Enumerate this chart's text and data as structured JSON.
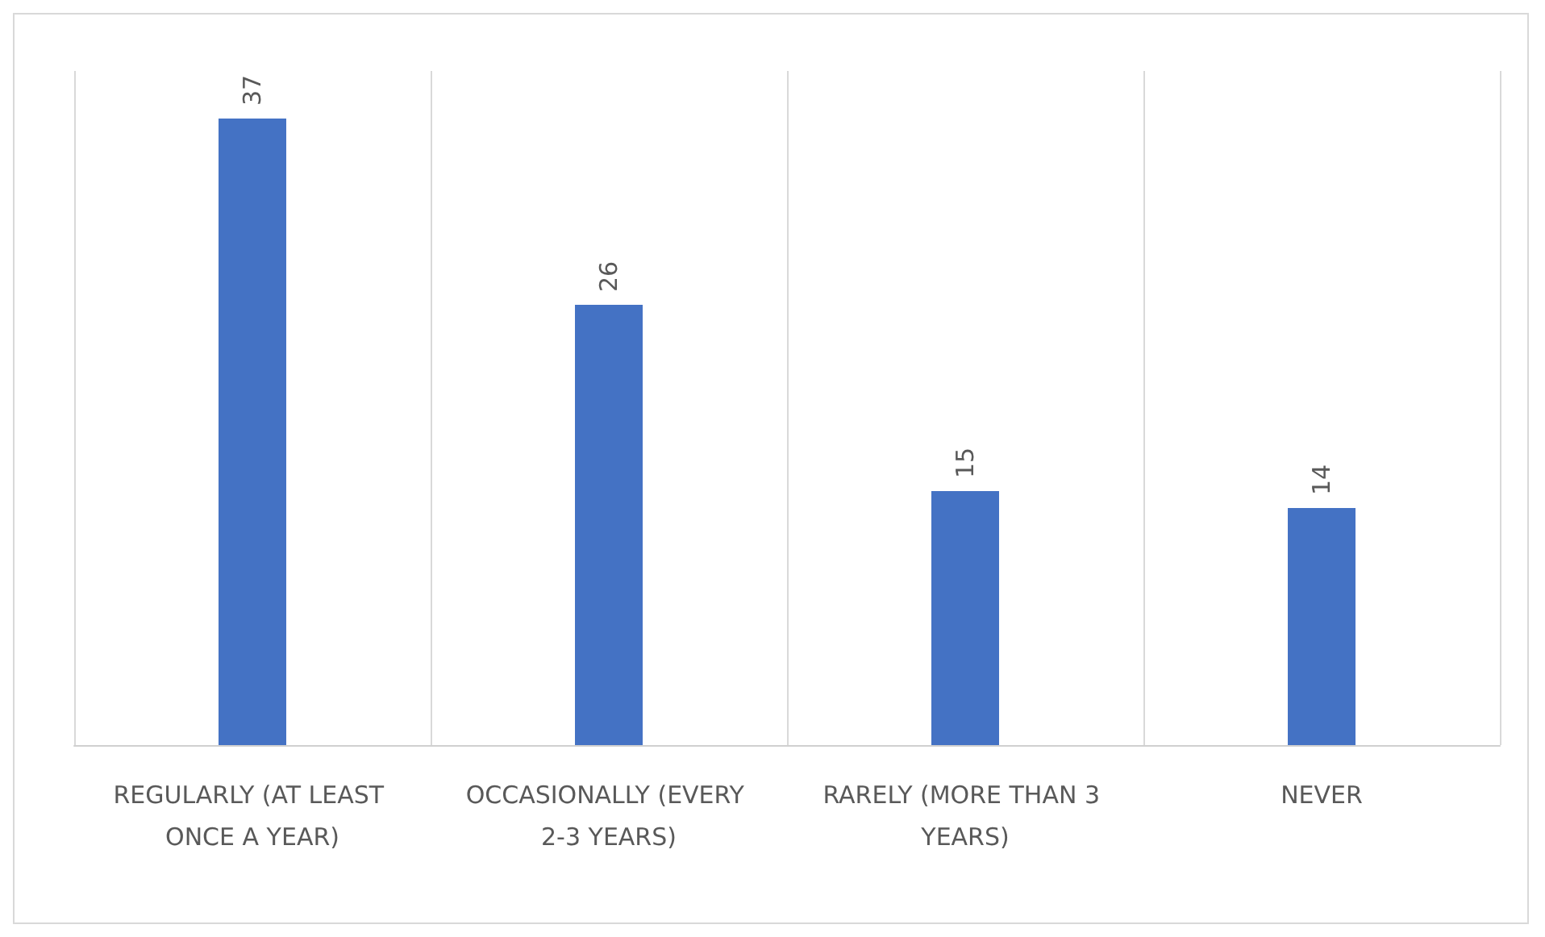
{
  "chart_data": {
    "type": "bar",
    "categories": [
      "REGULARLY (AT LEAST ONCE A YEAR)",
      "OCCASIONALLY (EVERY 2-3 YEARS)",
      "RARELY (MORE THAN 3 YEARS)",
      "NEVER"
    ],
    "values": [
      37,
      26,
      15,
      14
    ],
    "color": "#4472c4",
    "data_labels": true,
    "grid": "x"
  }
}
